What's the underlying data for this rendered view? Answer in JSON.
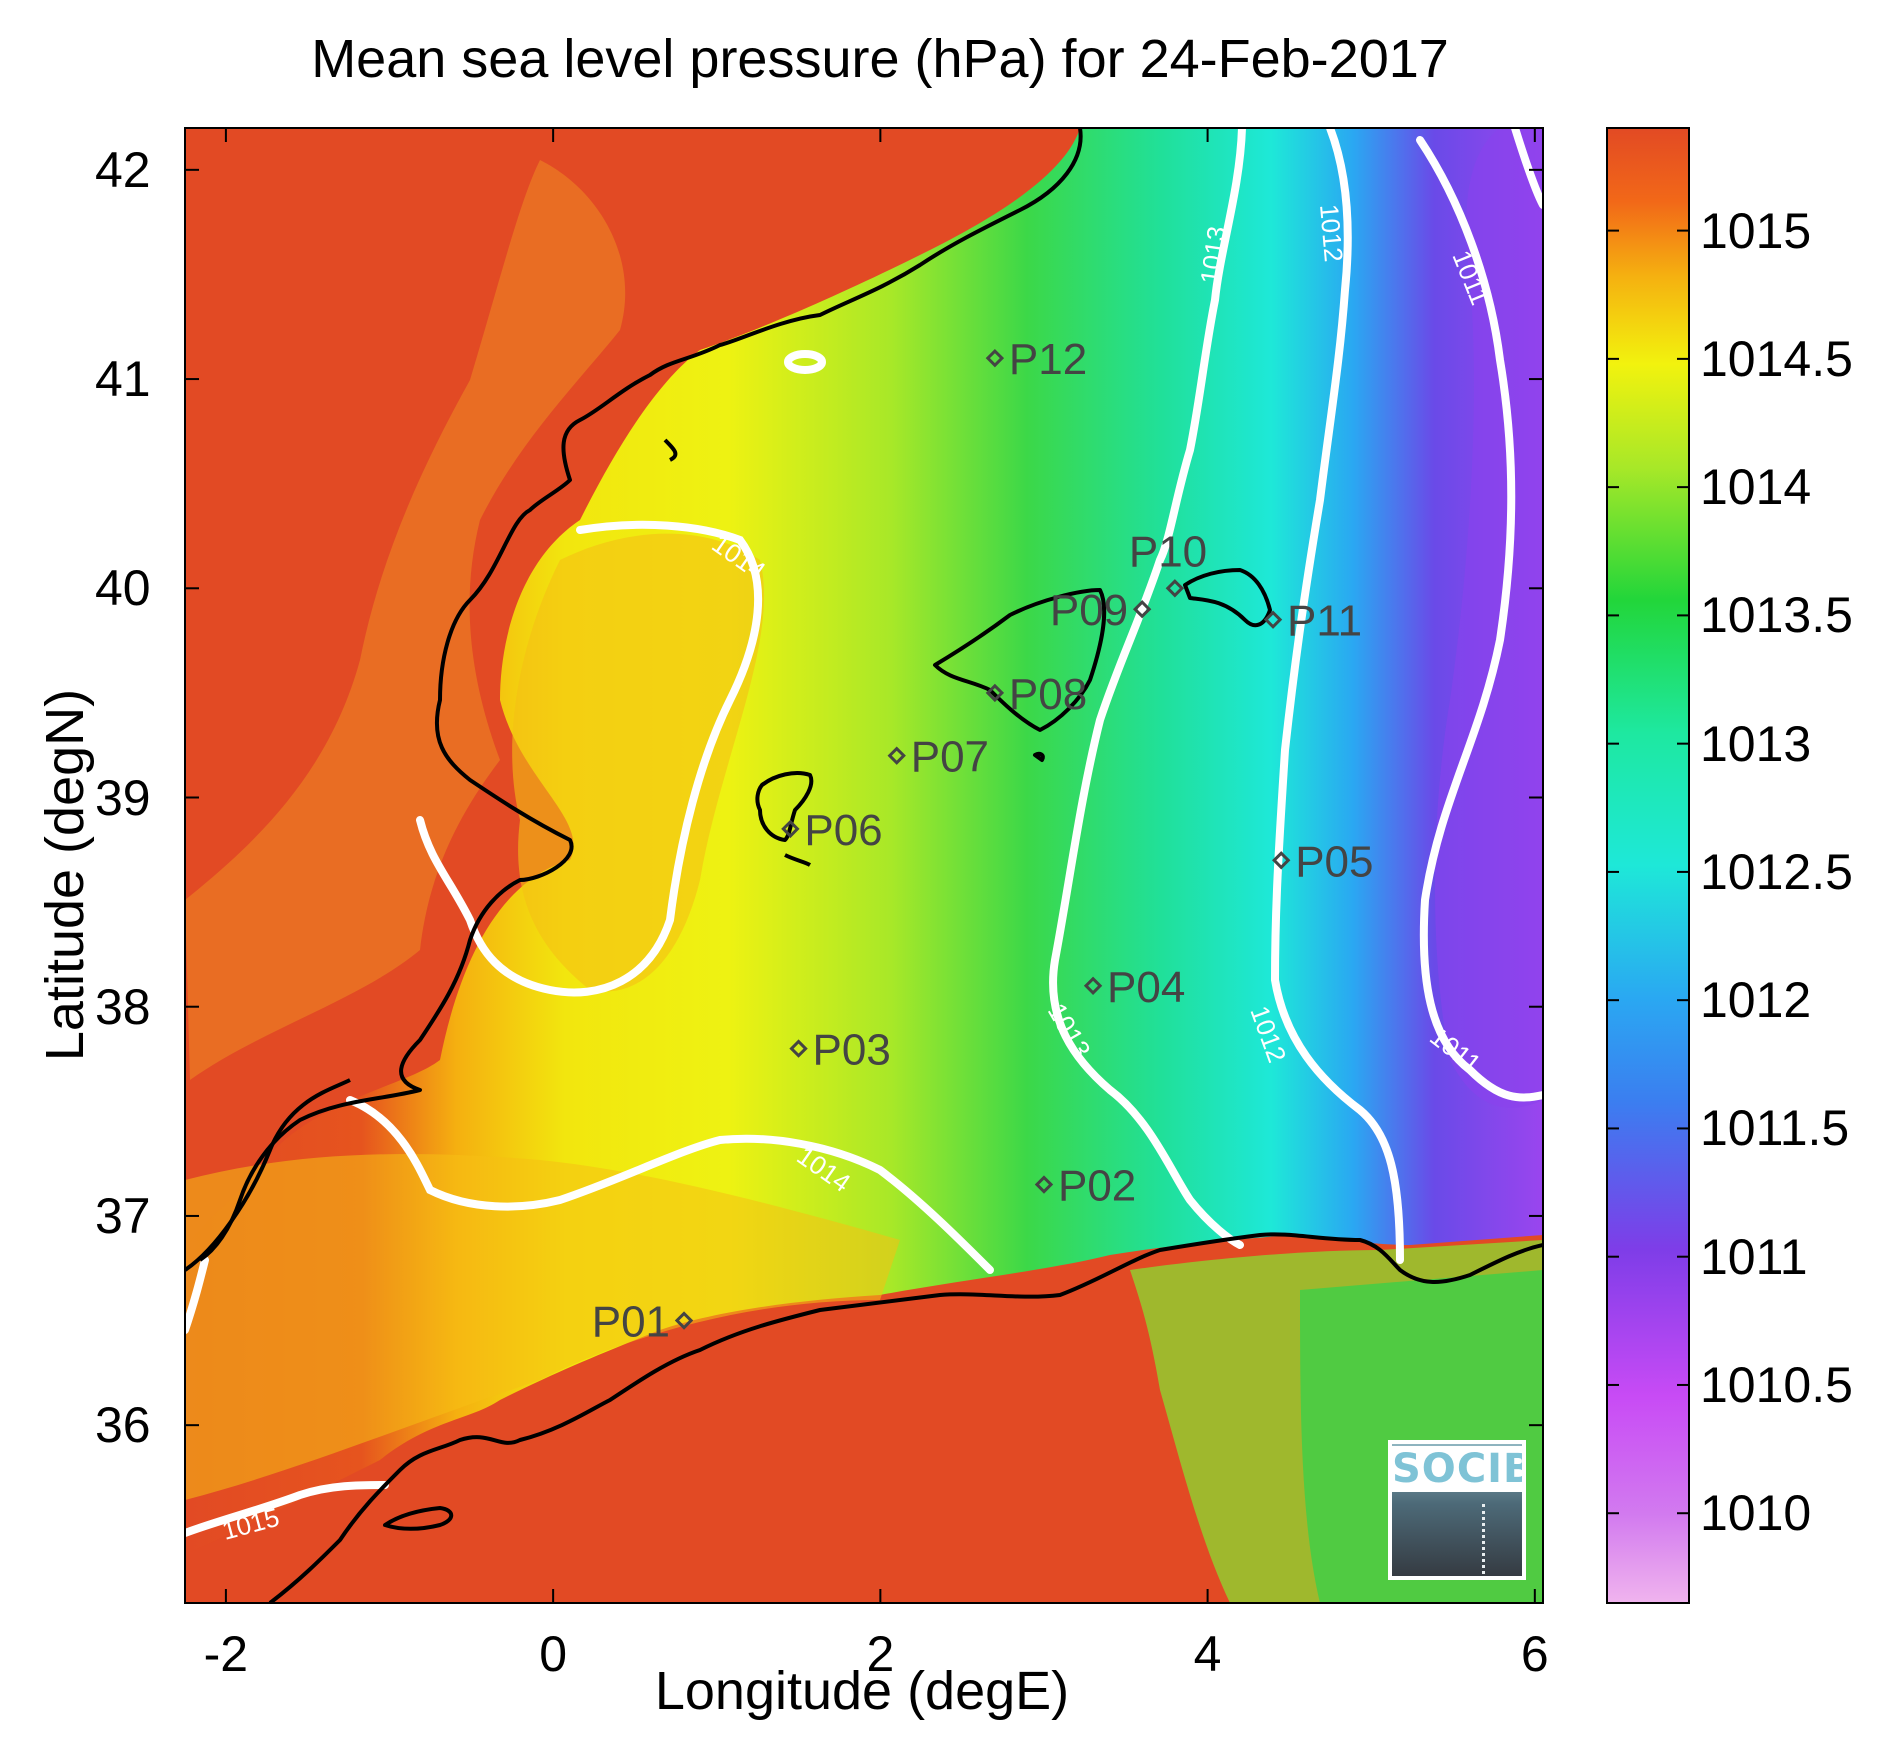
{
  "title": "Mean sea level pressure (hPa) for 24-Feb-2017",
  "axes": {
    "xlabel": "Longitude (degE)",
    "ylabel": "Latitude (degN)",
    "xlim": [
      -2.25,
      6.05
    ],
    "ylim": [
      35.15,
      42.2
    ],
    "xticks": [
      "-2",
      "0",
      "2",
      "4",
      "6"
    ],
    "xtick_values": [
      -2,
      0,
      2,
      4,
      6
    ],
    "yticks": [
      "36",
      "37",
      "38",
      "39",
      "40",
      "41",
      "42"
    ],
    "ytick_values": [
      36,
      37,
      38,
      39,
      40,
      41,
      42
    ]
  },
  "colorbar": {
    "ticks": [
      "1010",
      "1010.5",
      "1011",
      "1011.5",
      "1012",
      "1012.5",
      "1013",
      "1013.5",
      "1014",
      "1014.5",
      "1015"
    ],
    "tick_values": [
      1010,
      1010.5,
      1011,
      1011.5,
      1012,
      1012.5,
      1013,
      1013.5,
      1014,
      1014.5,
      1015
    ],
    "range": [
      1009.65,
      1015.4
    ],
    "colors": [
      "#f0b4ee",
      "#c84bf5",
      "#7e3de8",
      "#2aa8f2",
      "#1ee8d8",
      "#1ee8a0",
      "#22d63a",
      "#a8e828",
      "#f2f20e",
      "#f5b010",
      "#f26818",
      "#e24a24"
    ]
  },
  "contour_labels": [
    "1011",
    "1011",
    "1012",
    "1012",
    "1013",
    "1013",
    "1014",
    "1014",
    "1015"
  ],
  "stations": [
    {
      "name": "P01",
      "lon": 0.8,
      "lat": 36.5
    },
    {
      "name": "P02",
      "lon": 3.0,
      "lat": 37.15
    },
    {
      "name": "P03",
      "lon": 1.5,
      "lat": 37.8
    },
    {
      "name": "P04",
      "lon": 3.3,
      "lat": 38.1
    },
    {
      "name": "P05",
      "lon": 4.45,
      "lat": 38.7
    },
    {
      "name": "P06",
      "lon": 1.45,
      "lat": 38.85
    },
    {
      "name": "P07",
      "lon": 2.1,
      "lat": 39.2
    },
    {
      "name": "P08",
      "lon": 2.7,
      "lat": 39.5
    },
    {
      "name": "P09",
      "lon": 3.6,
      "lat": 39.9
    },
    {
      "name": "P10",
      "lon": 3.8,
      "lat": 40.0
    },
    {
      "name": "P11",
      "lon": 4.4,
      "lat": 39.85
    },
    {
      "name": "P12",
      "lon": 2.7,
      "lat": 41.1
    }
  ],
  "logo_text": "SOCIB"
}
